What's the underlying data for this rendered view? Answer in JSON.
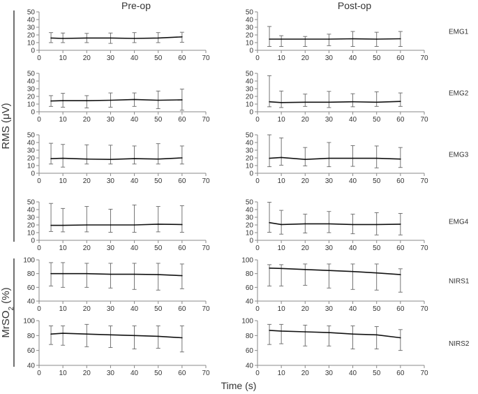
{
  "columns": [
    "Pre-op",
    "Post-op"
  ],
  "y_group_labels": [
    {
      "label": "RMS (μV)",
      "rows": [
        0,
        3
      ]
    },
    {
      "label": "MrSO",
      "sub": "2",
      "suffix": " (%)",
      "rows": [
        4,
        5
      ]
    }
  ],
  "xlabel": "Time (s)",
  "row_labels": [
    "EMG1",
    "EMG2",
    "EMG3",
    "EMG4",
    "NIRS1",
    "NIRS2"
  ],
  "x_ticks": [
    0,
    10,
    20,
    30,
    40,
    50,
    60,
    70
  ],
  "chart_data": {
    "type": "line",
    "x": [
      5,
      10,
      20,
      30,
      40,
      50,
      60
    ],
    "xlim": [
      0,
      70
    ],
    "grid": false,
    "panels": [
      {
        "row": "EMG1",
        "column": "Pre-op",
        "ylim": [
          0,
          50
        ],
        "yticks": [
          0,
          10,
          20,
          30,
          40,
          50
        ],
        "mean": [
          16,
          15.5,
          16,
          16,
          15.5,
          16,
          17.5
        ],
        "err_low": [
          10,
          10,
          10,
          9,
          10,
          10,
          10.5
        ],
        "err_high": [
          23,
          22.5,
          22,
          22.5,
          23,
          23,
          23.5
        ]
      },
      {
        "row": "EMG1",
        "column": "Post-op",
        "ylim": [
          0,
          50
        ],
        "yticks": [
          0,
          10,
          20,
          30,
          40,
          50
        ],
        "mean": [
          14.5,
          14.5,
          14.5,
          14.5,
          15,
          14.5,
          15
        ],
        "err_low": [
          5,
          5,
          5,
          6,
          5,
          5,
          5
        ],
        "err_high": [
          31,
          19,
          18,
          21,
          24.5,
          23.5,
          24.5
        ]
      },
      {
        "row": "EMG2",
        "column": "Pre-op",
        "ylim": [
          0,
          50
        ],
        "yticks": [
          0,
          10,
          20,
          30,
          40,
          50
        ],
        "mean": [
          14,
          14.5,
          14.5,
          15,
          16,
          15,
          15.5
        ],
        "err_low": [
          7,
          6,
          5,
          6,
          7,
          4,
          2
        ],
        "err_high": [
          21,
          24,
          21,
          24.5,
          24.5,
          27,
          29.5
        ]
      },
      {
        "row": "EMG2",
        "column": "Post-op",
        "ylim": [
          0,
          50
        ],
        "yticks": [
          0,
          10,
          20,
          30,
          40,
          50
        ],
        "mean": [
          13,
          12,
          12.5,
          12.5,
          13,
          12.5,
          13.5
        ],
        "err_low": [
          6.5,
          5.5,
          7,
          5.5,
          6.5,
          7,
          7
        ],
        "err_high": [
          47,
          27,
          23,
          26.5,
          23.5,
          26,
          24.5
        ]
      },
      {
        "row": "EMG3",
        "column": "Pre-op",
        "ylim": [
          0,
          50
        ],
        "yticks": [
          0,
          10,
          20,
          30,
          40,
          50
        ],
        "mean": [
          19,
          19.5,
          18.5,
          18,
          19,
          18.5,
          20
        ],
        "err_low": [
          12,
          8,
          12,
          12,
          12,
          12,
          12
        ],
        "err_high": [
          39,
          37.5,
          37,
          36.5,
          35.5,
          38.5,
          35.5
        ]
      },
      {
        "row": "EMG3",
        "column": "Post-op",
        "ylim": [
          0,
          50
        ],
        "yticks": [
          0,
          10,
          20,
          30,
          40,
          50
        ],
        "mean": [
          19.5,
          20.5,
          18,
          19.5,
          19.5,
          19.5,
          18.5
        ],
        "err_low": [
          8.5,
          10.5,
          9.5,
          8.5,
          9,
          7,
          7.5
        ],
        "err_high": [
          50,
          46,
          33.5,
          40,
          36,
          35.5,
          33.5
        ]
      },
      {
        "row": "EMG4",
        "column": "Pre-op",
        "ylim": [
          0,
          50
        ],
        "yticks": [
          0,
          10,
          20,
          30,
          40,
          50
        ],
        "mean": [
          19.5,
          19.5,
          20,
          20,
          20,
          21,
          20.5
        ],
        "err_low": [
          11.5,
          11,
          11,
          10.5,
          10.5,
          11,
          10.5
        ],
        "err_high": [
          48,
          41.5,
          44,
          40.5,
          46,
          44,
          45
        ]
      },
      {
        "row": "EMG4",
        "column": "Post-op",
        "ylim": [
          0,
          50
        ],
        "yticks": [
          0,
          10,
          20,
          30,
          40,
          50
        ],
        "mean": [
          23,
          20.5,
          21.5,
          21.5,
          20.5,
          20.5,
          21
        ],
        "err_low": [
          10.5,
          8,
          9.5,
          10,
          8.5,
          7,
          7
        ],
        "err_high": [
          49.5,
          39,
          34,
          37.5,
          34,
          36,
          35
        ]
      },
      {
        "row": "NIRS1",
        "column": "Pre-op",
        "ylim": [
          40,
          100
        ],
        "yticks": [
          40,
          60,
          80,
          100
        ],
        "mean": [
          80,
          80,
          80,
          79,
          79,
          78.5,
          77
        ],
        "err_low": [
          62,
          60,
          60,
          59,
          57,
          56,
          58
        ],
        "err_high": [
          96,
          96,
          95,
          95,
          95,
          95,
          94
        ]
      },
      {
        "row": "NIRS1",
        "column": "Post-op",
        "ylim": [
          40,
          100
        ],
        "yticks": [
          40,
          60,
          80,
          100
        ],
        "mean": [
          88,
          87.5,
          86,
          84.5,
          83,
          81,
          78.5
        ],
        "err_low": [
          62,
          62,
          63,
          59,
          57,
          56,
          53
        ],
        "err_high": [
          93,
          93,
          94,
          94,
          94,
          94,
          87
        ]
      },
      {
        "row": "NIRS2",
        "column": "Pre-op",
        "ylim": [
          40,
          100
        ],
        "yticks": [
          40,
          60,
          80,
          100
        ],
        "mean": [
          82,
          83,
          82,
          81,
          80,
          79,
          77
        ],
        "err_low": [
          68,
          67,
          65,
          64,
          62,
          63,
          58
        ],
        "err_high": [
          93,
          93,
          95,
          93,
          93,
          93,
          93
        ]
      },
      {
        "row": "NIRS2",
        "column": "Post-op",
        "ylim": [
          40,
          100
        ],
        "yticks": [
          40,
          60,
          80,
          100
        ],
        "mean": [
          87,
          86,
          85,
          84,
          82,
          81,
          77
        ],
        "err_low": [
          68,
          69,
          66,
          66,
          62,
          62,
          60
        ],
        "err_high": [
          95,
          95,
          94,
          93,
          93,
          92,
          88
        ]
      }
    ]
  }
}
